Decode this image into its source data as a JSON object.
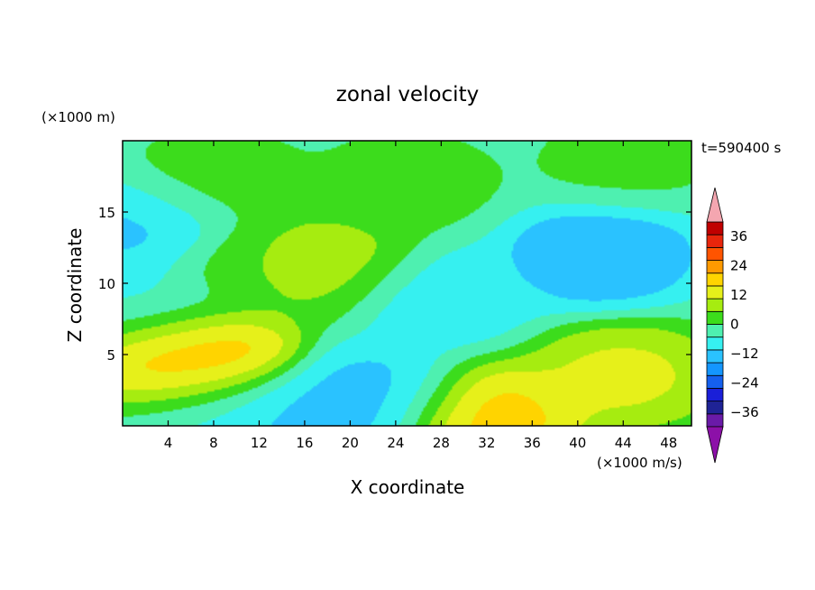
{
  "chart_data": {
    "type": "heatmap",
    "title": "zonal velocity",
    "xlabel": "X coordinate",
    "ylabel": "Z coordinate",
    "x_unit_label": "(×1000 m/s)",
    "y_unit_label": "(×1000 m)",
    "time_label": "t=590400 s",
    "xlim": [
      0,
      50
    ],
    "ylim": [
      0,
      20
    ],
    "x_ticks": [
      4,
      8,
      12,
      16,
      20,
      24,
      28,
      32,
      36,
      40,
      44,
      48
    ],
    "y_ticks": [
      5,
      10,
      15
    ],
    "colorbar": {
      "tick_labels": [
        "36",
        "24",
        "12",
        "0",
        "−12",
        "−24",
        "−36"
      ],
      "tick_values": [
        36,
        24,
        12,
        0,
        -12,
        -24,
        -36
      ],
      "levels": [
        -42,
        -36,
        -30,
        -24,
        -18,
        -12,
        -6,
        0,
        6,
        12,
        18,
        24,
        30,
        36,
        42
      ],
      "colors": [
        "#6a1aa8",
        "#1f2396",
        "#1a1fd8",
        "#1560ee",
        "#1496ff",
        "#2ac2ff",
        "#36f0f0",
        "#4ef0b0",
        "#3cdc1c",
        "#a6ec10",
        "#e6f01a",
        "#ffd400",
        "#ff9a00",
        "#ff5400",
        "#e8260c",
        "#c00000"
      ],
      "over_color": "#f4a6b0",
      "under_color": "#8c10a8"
    },
    "features": [
      {
        "x": 6.5,
        "z": 4.8,
        "value": 30
      },
      {
        "x": 5.0,
        "z": 4.6,
        "value": 21
      },
      {
        "x": 32.0,
        "z": 0.6,
        "value": 25
      },
      {
        "x": 44.0,
        "z": 3.5,
        "value": 16
      },
      {
        "x": 18.0,
        "z": 11.5,
        "value": 11
      },
      {
        "x": 12.0,
        "z": 11.0,
        "value": 6
      },
      {
        "x": 42.0,
        "z": 12.0,
        "value": -20
      },
      {
        "x": 2.0,
        "z": 14.0,
        "value": -15
      },
      {
        "x": 22.5,
        "z": 2.0,
        "value": -16
      },
      {
        "x": 15.0,
        "z": 0.5,
        "value": -16
      },
      {
        "x": 28.0,
        "z": 9.0,
        "value": -11
      },
      {
        "x": 25.0,
        "z": 17.0,
        "value": 3
      },
      {
        "x": 8.0,
        "z": 17.0,
        "value": 4
      },
      {
        "x": 44.0,
        "z": 18.5,
        "value": 2
      },
      {
        "x": 8.0,
        "z": 1.2,
        "value": -8
      },
      {
        "x": 3.0,
        "z": 8.0,
        "value": -9
      }
    ],
    "background_value": -3,
    "grid": false
  }
}
